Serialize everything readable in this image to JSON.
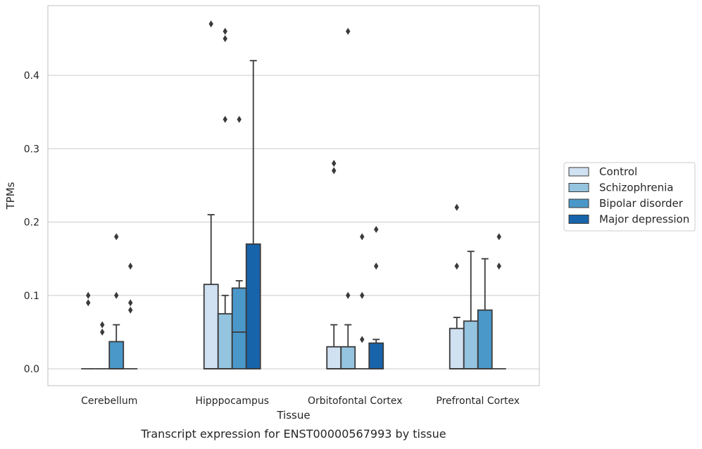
{
  "chart_data": {
    "type": "box",
    "xlabel": "Tissue",
    "ylabel": "TPMs",
    "caption": "Transcript expression for ENST00000567993 by tissue",
    "ylim": [
      -0.023,
      0.495
    ],
    "y_ticks": [
      "0.0",
      "0.1",
      "0.2",
      "0.3",
      "0.4"
    ],
    "grid": "horizontal",
    "legend_position": "right",
    "categories": [
      "Cerebellum",
      "Hipppocampus",
      "Orbitofontal Cortex",
      "Prefrontal Cortex"
    ],
    "series": [
      {
        "name": "Control",
        "color": "#d0e1f2",
        "boxes": [
          {
            "q1": 0,
            "median": 0,
            "q3": 0,
            "whisker_low": 0,
            "whisker_high": 0,
            "outliers": [
              0.1,
              0.09
            ]
          },
          {
            "q1": 0,
            "median": 0,
            "q3": 0.115,
            "whisker_low": 0,
            "whisker_high": 0.21,
            "outliers": [
              0.47
            ]
          },
          {
            "q1": 0,
            "median": 0,
            "q3": 0.03,
            "whisker_low": 0,
            "whisker_high": 0.06,
            "outliers": [
              0.28,
              0.27
            ]
          },
          {
            "q1": 0,
            "median": 0,
            "q3": 0.055,
            "whisker_low": 0,
            "whisker_high": 0.07,
            "outliers": [
              0.22,
              0.14
            ]
          }
        ]
      },
      {
        "name": "Schizophrenia",
        "color": "#94c4df",
        "boxes": [
          {
            "q1": 0,
            "median": 0,
            "q3": 0,
            "whisker_low": 0,
            "whisker_high": 0,
            "outliers": [
              0.06,
              0.05
            ]
          },
          {
            "q1": 0,
            "median": 0,
            "q3": 0.075,
            "whisker_low": 0,
            "whisker_high": 0.1,
            "outliers": [
              0.46,
              0.45,
              0.34
            ]
          },
          {
            "q1": 0,
            "median": 0,
            "q3": 0.03,
            "whisker_low": 0,
            "whisker_high": 0.06,
            "outliers": [
              0.46,
              0.1
            ]
          },
          {
            "q1": 0,
            "median": 0,
            "q3": 0.065,
            "whisker_low": 0,
            "whisker_high": 0.16,
            "outliers": []
          }
        ]
      },
      {
        "name": "Bipolar disorder",
        "color": "#4a98c9",
        "boxes": [
          {
            "q1": 0,
            "median": 0,
            "q3": 0.037,
            "whisker_low": 0,
            "whisker_high": 0.06,
            "outliers": [
              0.18,
              0.1
            ]
          },
          {
            "q1": 0,
            "median": 0.05,
            "q3": 0.11,
            "whisker_low": 0,
            "whisker_high": 0.12,
            "outliers": [
              0.34
            ]
          },
          {
            "q1": 0,
            "median": 0,
            "q3": 0,
            "whisker_low": 0,
            "whisker_high": 0,
            "outliers": [
              0.18,
              0.1,
              0.04
            ]
          },
          {
            "q1": 0,
            "median": 0,
            "q3": 0.08,
            "whisker_low": 0,
            "whisker_high": 0.15,
            "outliers": []
          }
        ]
      },
      {
        "name": "Major depression",
        "color": "#1764ab",
        "boxes": [
          {
            "q1": 0,
            "median": 0,
            "q3": 0,
            "whisker_low": 0,
            "whisker_high": 0,
            "outliers": [
              0.14,
              0.09,
              0.08
            ]
          },
          {
            "q1": 0,
            "median": 0,
            "q3": 0.17,
            "whisker_low": 0,
            "whisker_high": 0.42,
            "outliers": []
          },
          {
            "q1": 0,
            "median": 0,
            "q3": 0.035,
            "whisker_low": 0,
            "whisker_high": 0.04,
            "outliers": [
              0.19,
              0.14
            ]
          },
          {
            "q1": 0,
            "median": 0,
            "q3": 0,
            "whisker_low": 0,
            "whisker_high": 0,
            "outliers": [
              0.18,
              0.14
            ]
          }
        ]
      }
    ]
  }
}
